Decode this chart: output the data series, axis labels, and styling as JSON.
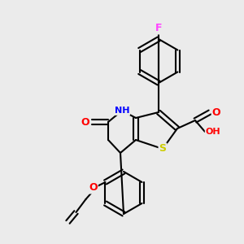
{
  "background_color": "#ebebeb",
  "atoms": {
    "F": {
      "color": "#ff44ff"
    },
    "N": {
      "color": "#0000ff"
    },
    "O": {
      "color": "#ff0000"
    },
    "S": {
      "color": "#cccc00"
    },
    "H": {
      "color": "#00aaaa"
    }
  },
  "figsize": [
    3.0,
    3.0
  ],
  "dpi": 100
}
